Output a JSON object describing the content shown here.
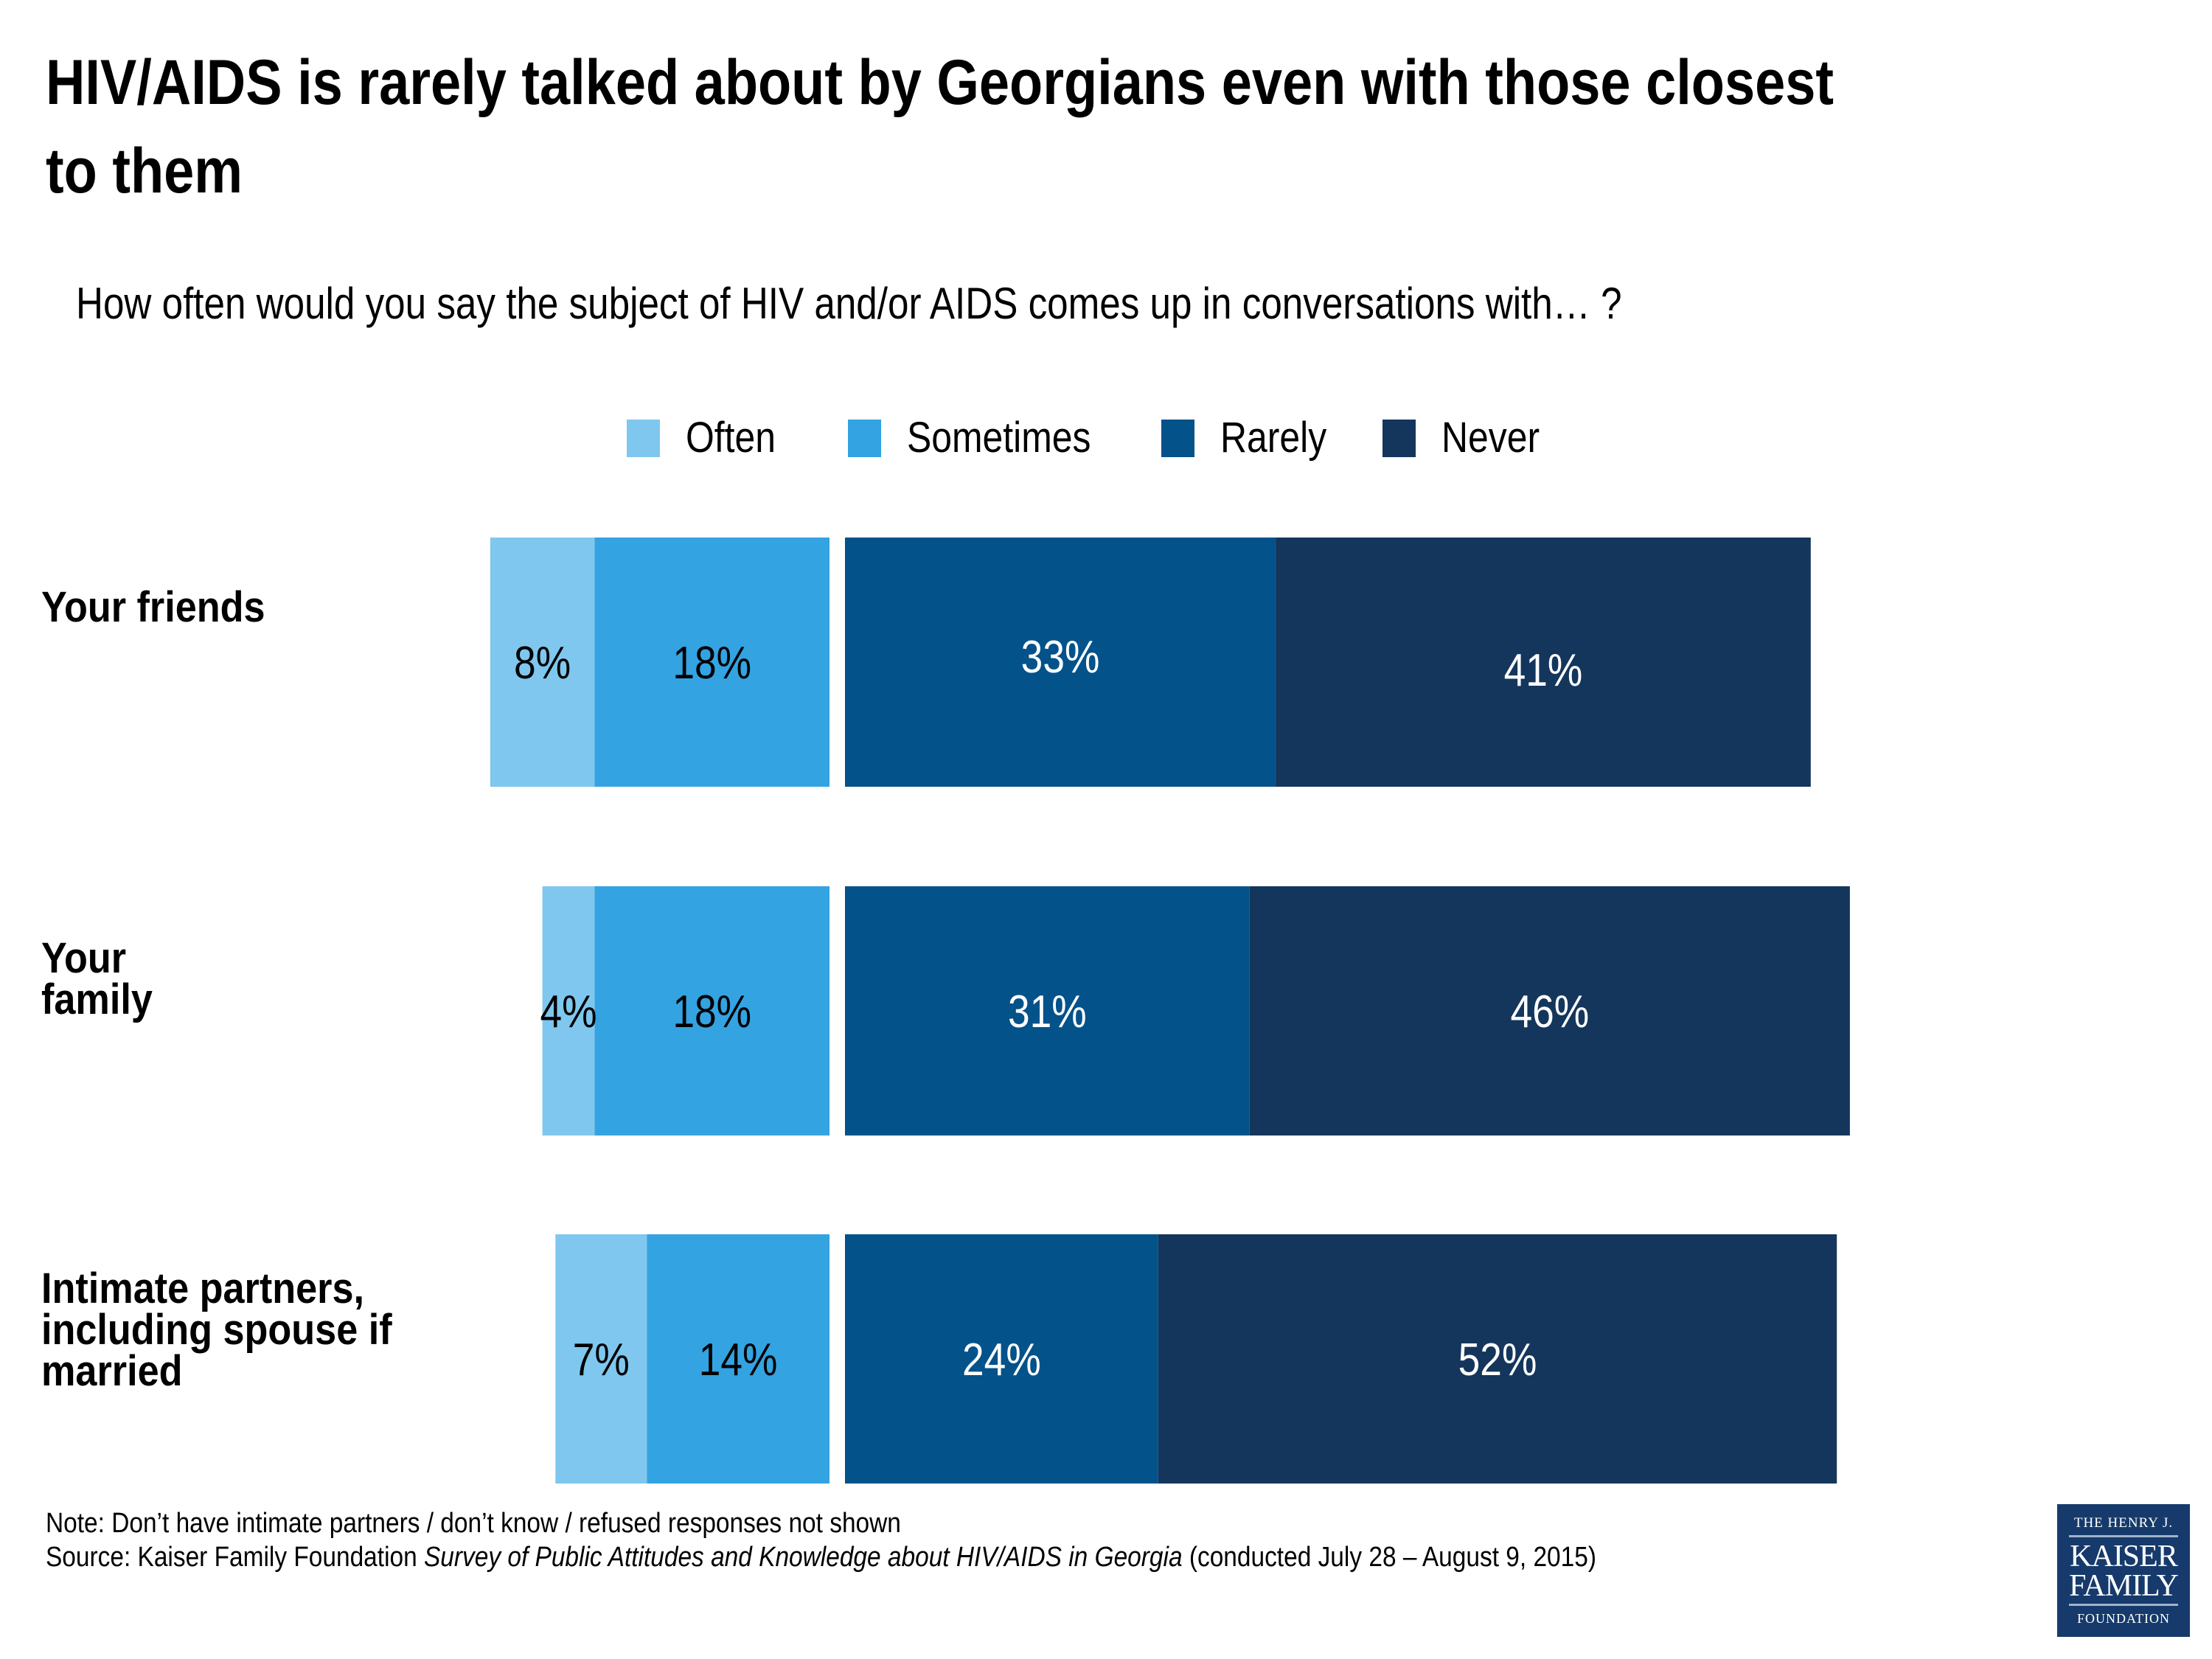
{
  "title_lines": [
    "HIV/AIDS is rarely talked about by Georgians even with those closest",
    "to them"
  ],
  "subtitle": "How often would you say the subject of HIV and/or AIDS comes up in conversations with… ?",
  "colors": {
    "often": "#7fc7ee",
    "sometimes": "#33a3e2",
    "rarely": "#04528a",
    "never": "#14365c",
    "label_dark": "#000000",
    "label_light": "#ffffff"
  },
  "legend": [
    {
      "key": "often",
      "label": "Often"
    },
    {
      "key": "sometimes",
      "label": "Sometimes"
    },
    {
      "key": "rarely",
      "label": "Rarely"
    },
    {
      "key": "never",
      "label": "Never"
    }
  ],
  "chart_data": {
    "type": "bar",
    "orientation": "horizontal",
    "stacking": "diverging",
    "title": "HIV/AIDS is rarely talked about by Georgians even with those closest to them",
    "subtitle": "How often would you say the subject of HIV and/or AIDS comes up in conversations with… ?",
    "categories": [
      [
        "Your friends"
      ],
      [
        "Your",
        "family"
      ],
      [
        "Intimate partners,",
        "including spouse if",
        "married"
      ]
    ],
    "category_names": [
      "Your friends",
      "Your family",
      "Intimate partners, including spouse if married"
    ],
    "series": [
      {
        "name": "Often",
        "key": "often",
        "side": "left",
        "values": [
          8,
          4,
          7
        ]
      },
      {
        "name": "Sometimes",
        "key": "sometimes",
        "side": "left",
        "values": [
          18,
          18,
          14
        ]
      },
      {
        "name": "Rarely",
        "key": "rarely",
        "side": "right",
        "values": [
          33,
          31,
          24
        ]
      },
      {
        "name": "Never",
        "key": "never",
        "side": "right",
        "values": [
          41,
          46,
          52
        ]
      }
    ],
    "value_format": "percent",
    "legend_position": "top-center",
    "xlabel": "",
    "ylabel": "",
    "grid": false,
    "axis_visible": false
  },
  "footnotes": {
    "note": "Note: Don’t have intimate partners / don’t know / refused responses not shown",
    "source_prefix": "Source: Kaiser Family Foundation ",
    "source_italic": "Survey of Public Attitudes and Knowledge about HIV/AIDS in Georgia",
    "source_suffix": " (conducted July 28 – August 9, 2015)"
  },
  "logo": {
    "line1": "THE HENRY J.",
    "line2": "KAISER",
    "line3": "FAMILY",
    "line4": "FOUNDATION"
  }
}
